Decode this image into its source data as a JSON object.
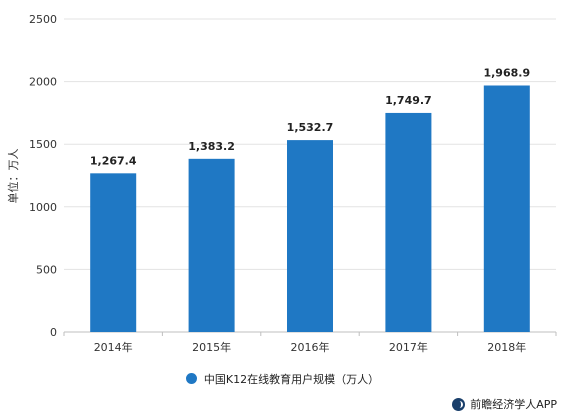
{
  "chart_data": {
    "type": "bar",
    "categories": [
      "2014年",
      "2015年",
      "2016年",
      "2017年",
      "2018年"
    ],
    "values": [
      1267.4,
      1383.2,
      1532.7,
      1749.7,
      1968.9
    ],
    "value_labels": [
      "1,267.4",
      "1,383.2",
      "1,532.7",
      "1,749.7",
      "1,968.9"
    ],
    "ylabel": "单位：万人",
    "ylim": [
      0,
      2500
    ],
    "yticks": [
      0,
      500,
      1000,
      1500,
      2000,
      2500
    ],
    "grid": true,
    "legend": {
      "position": "bottom",
      "label": "中国K12在线教育用户规模（万人）"
    },
    "bar_color": "#1f78c4"
  },
  "source": {
    "text": "前瞻经济学人APP",
    "icon": "qianzhan-logo-icon"
  }
}
